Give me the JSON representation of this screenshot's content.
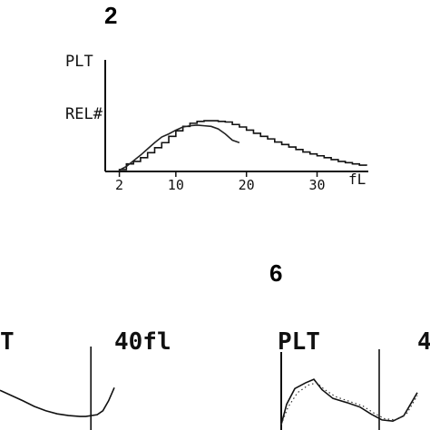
{
  "panels": [
    {
      "number": "2"
    },
    {
      "number": "6"
    }
  ],
  "chart_data": [
    {
      "type": "line",
      "panel": "2",
      "ylabel_top": "PLT",
      "ylabel": "REL#",
      "xlabel": "fL",
      "x_ticks": [
        {
          "value": 2,
          "label": "2"
        },
        {
          "value": 10,
          "label": "10"
        },
        {
          "value": 20,
          "label": "20"
        },
        {
          "value": 30,
          "label": "30"
        }
      ],
      "xlim": [
        0,
        37
      ],
      "ylim": [
        0,
        1
      ],
      "series": [
        {
          "style": "step",
          "points": [
            [
              1,
              0
            ],
            [
              2,
              0.03
            ],
            [
              3,
              0.12
            ],
            [
              4,
              0.16
            ],
            [
              5,
              0.22
            ],
            [
              6,
              0.3
            ],
            [
              7,
              0.38
            ],
            [
              8,
              0.46
            ],
            [
              9,
              0.56
            ],
            [
              10,
              0.65
            ],
            [
              11,
              0.72
            ],
            [
              12,
              0.77
            ],
            [
              13,
              0.8
            ],
            [
              14,
              0.81
            ],
            [
              15,
              0.81
            ],
            [
              16,
              0.8
            ],
            [
              17,
              0.79
            ],
            [
              18,
              0.75
            ],
            [
              19,
              0.71
            ],
            [
              20,
              0.66
            ],
            [
              21,
              0.61
            ],
            [
              22,
              0.56
            ],
            [
              23,
              0.52
            ],
            [
              24,
              0.47
            ],
            [
              25,
              0.43
            ],
            [
              26,
              0.39
            ],
            [
              27,
              0.35
            ],
            [
              28,
              0.31
            ],
            [
              29,
              0.28
            ],
            [
              30,
              0.25
            ],
            [
              31,
              0.22
            ],
            [
              32,
              0.19
            ],
            [
              33,
              0.16
            ],
            [
              34,
              0.14
            ],
            [
              35,
              0.12
            ],
            [
              36,
              0.1
            ],
            [
              37,
              0.09
            ]
          ]
        },
        {
          "style": "line",
          "points": [
            [
              2,
              0.02
            ],
            [
              3,
              0.08
            ],
            [
              4,
              0.17
            ],
            [
              5,
              0.26
            ],
            [
              6,
              0.36
            ],
            [
              7,
              0.46
            ],
            [
              8,
              0.55
            ],
            [
              9,
              0.6
            ],
            [
              10,
              0.66
            ],
            [
              11,
              0.71
            ],
            [
              12,
              0.73
            ],
            [
              13,
              0.74
            ],
            [
              14,
              0.73
            ],
            [
              15,
              0.72
            ],
            [
              16,
              0.68
            ],
            [
              17,
              0.6
            ],
            [
              18,
              0.5
            ],
            [
              19,
              0.46
            ]
          ]
        }
      ]
    },
    {
      "type": "line",
      "panel": "left",
      "label_left": "T",
      "label_right": "40fl",
      "series": [
        {
          "style": "line",
          "points": [
            [
              0,
              0.62
            ],
            [
              0.1,
              0.5
            ],
            [
              0.2,
              0.38
            ],
            [
              0.3,
              0.25
            ],
            [
              0.4,
              0.15
            ],
            [
              0.5,
              0.08
            ],
            [
              0.6,
              0.04
            ],
            [
              0.7,
              0.02
            ],
            [
              0.75,
              0.02
            ],
            [
              0.85,
              0.06
            ],
            [
              0.9,
              0.15
            ],
            [
              0.95,
              0.38
            ],
            [
              1,
              0.68
            ]
          ]
        }
      ],
      "vertical_marker_x": 0.7
    },
    {
      "type": "line",
      "panel": "6",
      "label_left": "PLT",
      "label_right": "4",
      "series": [
        {
          "style": "line",
          "points": [
            [
              0,
              0
            ],
            [
              0.04,
              0.35
            ],
            [
              0.1,
              0.62
            ],
            [
              0.18,
              0.72
            ],
            [
              0.24,
              0.78
            ],
            [
              0.3,
              0.6
            ],
            [
              0.38,
              0.45
            ],
            [
              0.48,
              0.38
            ],
            [
              0.58,
              0.3
            ],
            [
              0.66,
              0.18
            ],
            [
              0.74,
              0.08
            ],
            [
              0.82,
              0.06
            ],
            [
              0.9,
              0.15
            ],
            [
              1,
              0.55
            ]
          ]
        },
        {
          "style": "dotted",
          "points": [
            [
              0,
              0
            ],
            [
              0.05,
              0.3
            ],
            [
              0.12,
              0.55
            ],
            [
              0.2,
              0.68
            ],
            [
              0.26,
              0.72
            ],
            [
              0.32,
              0.6
            ],
            [
              0.4,
              0.48
            ],
            [
              0.5,
              0.4
            ],
            [
              0.6,
              0.32
            ],
            [
              0.68,
              0.2
            ],
            [
              0.76,
              0.1
            ],
            [
              0.84,
              0.08
            ],
            [
              0.92,
              0.18
            ],
            [
              1,
              0.5
            ]
          ]
        }
      ],
      "vertical_marker_x": 0.72
    }
  ]
}
